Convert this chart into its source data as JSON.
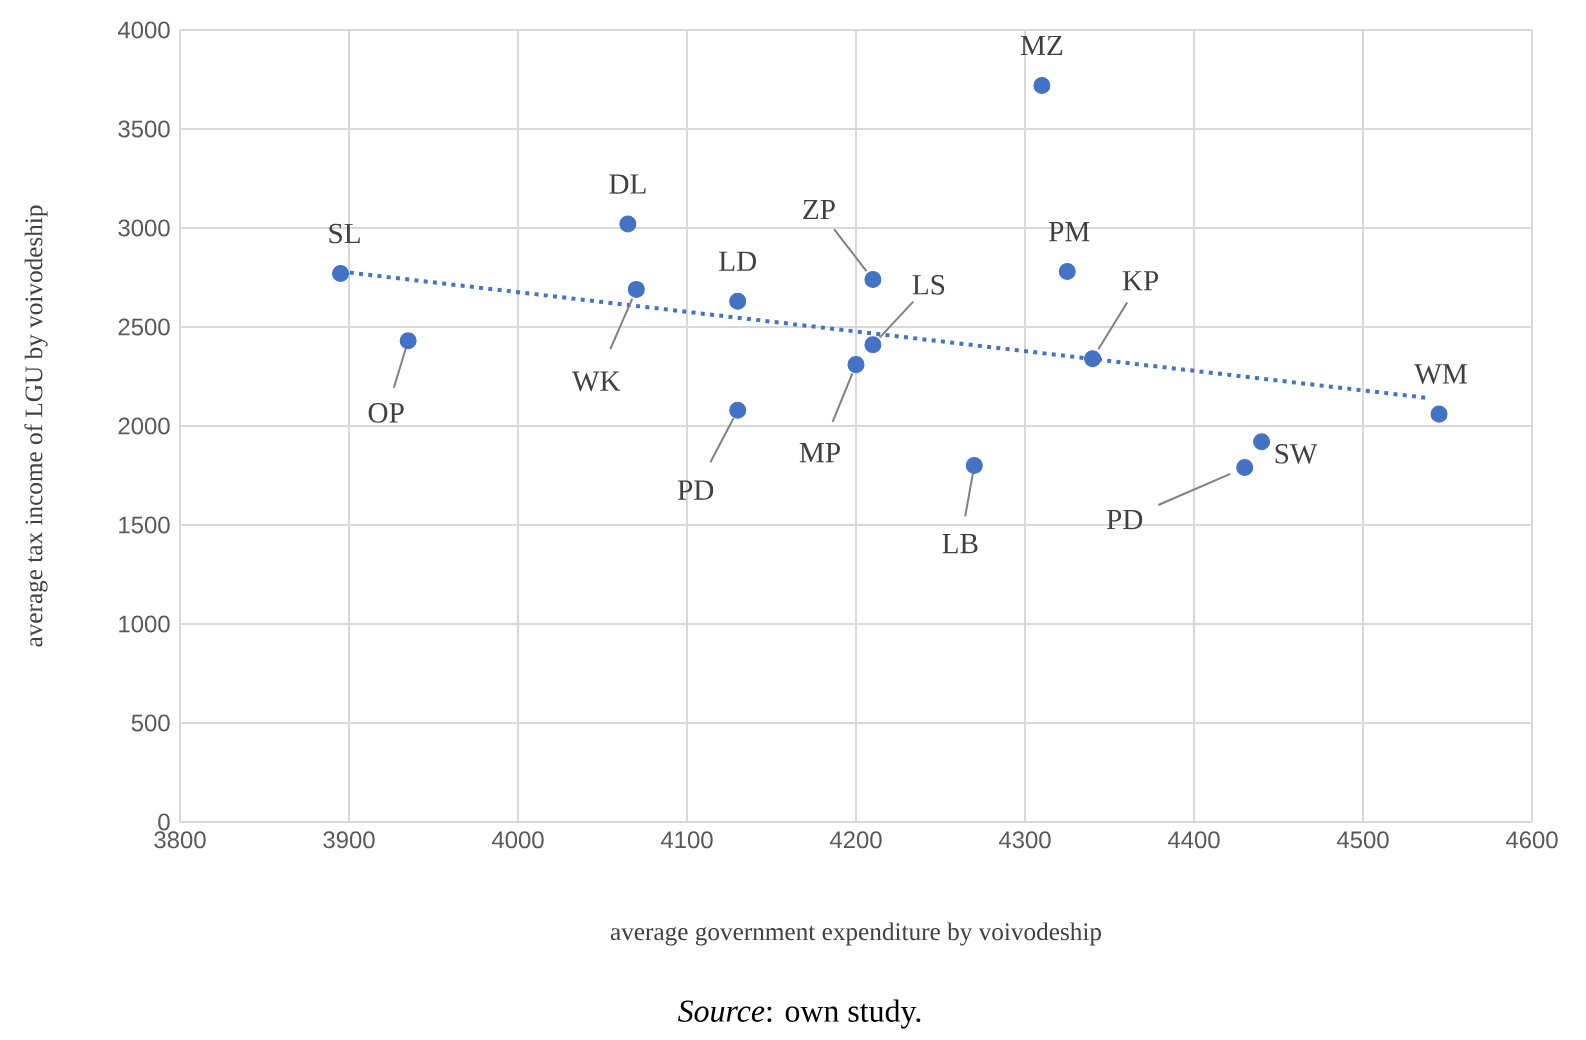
{
  "chart_data": {
    "type": "scatter",
    "xlabel": "average government expenditure by voivodeship",
    "ylabel": "average tax income of LGU by voivodeship",
    "xlim": [
      3800,
      4600
    ],
    "ylim": [
      0,
      4000
    ],
    "xticks": [
      3800,
      3900,
      4000,
      4100,
      4200,
      4300,
      4400,
      4500,
      4600
    ],
    "yticks": [
      0,
      500,
      1000,
      1500,
      2000,
      2500,
      3000,
      3500,
      4000
    ],
    "grid": true,
    "marker": "circle",
    "series": [
      {
        "color": "#4472c4",
        "x": [
          3895,
          3935,
          4065,
          4070,
          4130,
          4130,
          4210,
          4210,
          4200,
          4270,
          4310,
          4325,
          4340,
          4440,
          4430,
          4545
        ],
        "values": [
          2770,
          2430,
          3020,
          2690,
          2630,
          2080,
          2740,
          2410,
          2310,
          1800,
          3720,
          2780,
          2340,
          1920,
          1790,
          2060
        ]
      },
      {
        "type": "line",
        "line_style": "dotted",
        "marker": "none",
        "color": "#4472c4",
        "x": [
          3895,
          4540
        ],
        "values": [
          2780,
          2140
        ]
      }
    ],
    "annotations": [
      {
        "text": "SL",
        "x": 3895,
        "y": 2770
      },
      {
        "text": "OP",
        "x": 3935,
        "y": 2430
      },
      {
        "text": "DL",
        "x": 4065,
        "y": 3020
      },
      {
        "text": "WK",
        "x": 4070,
        "y": 2690
      },
      {
        "text": "LD",
        "x": 4130,
        "y": 2630
      },
      {
        "text": "PD",
        "x": 4130,
        "y": 2080
      },
      {
        "text": "ZP",
        "x": 4210,
        "y": 2740
      },
      {
        "text": "LS",
        "x": 4210,
        "y": 2410
      },
      {
        "text": "MP",
        "x": 4200,
        "y": 2310
      },
      {
        "text": "LB",
        "x": 4270,
        "y": 1800
      },
      {
        "text": "MZ",
        "x": 4310,
        "y": 3720
      },
      {
        "text": "PM",
        "x": 4325,
        "y": 2780
      },
      {
        "text": "KP",
        "x": 4340,
        "y": 2340
      },
      {
        "text": "SW",
        "x": 4440,
        "y": 1920
      },
      {
        "text": "PD",
        "x": 4430,
        "y": 1790
      },
      {
        "text": "WM",
        "x": 4545,
        "y": 2060
      },
      "*Source*: own study."
    ]
  }
}
